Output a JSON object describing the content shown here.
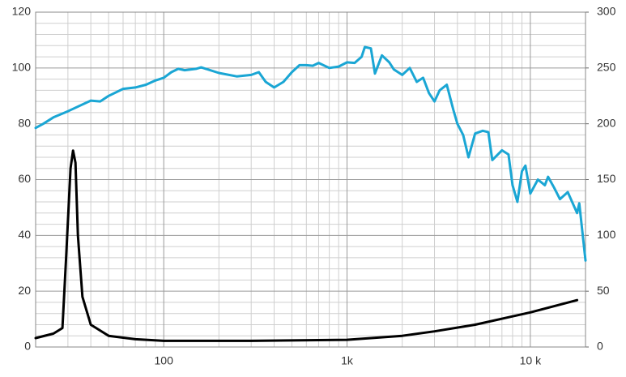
{
  "chart_data": {
    "type": "line",
    "xscale": "log",
    "grid": true,
    "xlim": [
      20,
      20000
    ],
    "xticks": [
      100,
      {
        "value": 1000,
        "label": "1k"
      },
      {
        "value": 10000,
        "label": "10 k"
      }
    ],
    "xminorticks": [
      20,
      30,
      40,
      50,
      60,
      70,
      80,
      90,
      200,
      300,
      400,
      500,
      600,
      700,
      800,
      900,
      2000,
      3000,
      4000,
      5000,
      6000,
      7000,
      8000,
      9000,
      20000
    ],
    "ylim": [
      0,
      120
    ],
    "yticks": [
      0,
      20,
      40,
      60,
      80,
      100,
      120
    ],
    "yminorticks": [
      4,
      8,
      12,
      16,
      24,
      28,
      32,
      36,
      44,
      48,
      52,
      56,
      64,
      68,
      72,
      76,
      84,
      88,
      92,
      96,
      104,
      108,
      112,
      116
    ],
    "y2lim": [
      0,
      300
    ],
    "y2ticks": [
      0,
      50,
      100,
      150,
      200,
      250,
      300
    ],
    "series": [
      {
        "color": "#1aa6d4",
        "axis": "y",
        "x": [
          20,
          22,
          25,
          30,
          40,
          45,
          50,
          60,
          70,
          80,
          90,
          100,
          110,
          120,
          130,
          150,
          160,
          200,
          250,
          300,
          330,
          360,
          400,
          450,
          500,
          550,
          600,
          650,
          700,
          800,
          900,
          1000,
          1100,
          1200,
          1250,
          1350,
          1420,
          1550,
          1700,
          1800,
          2000,
          2200,
          2400,
          2600,
          2800,
          3000,
          3200,
          3500,
          3800,
          4000,
          4300,
          4600,
          5000,
          5500,
          5900,
          6200,
          7000,
          7600,
          8000,
          8500,
          9000,
          9400,
          10000,
          11000,
          12000,
          12500,
          13500,
          14500,
          16000,
          18000,
          18500,
          20000
        ],
        "values": [
          78.5,
          80,
          82.3,
          84.5,
          88.3,
          88,
          90,
          92.5,
          93,
          94,
          95.5,
          96.5,
          98.5,
          99.7,
          99.2,
          99.7,
          100.2,
          98.2,
          97,
          97.5,
          98.5,
          95,
          93,
          95,
          98.5,
          101,
          101,
          100.8,
          101.8,
          100,
          100.5,
          102,
          101.8,
          104,
          107.5,
          107,
          98,
          104.5,
          102,
          99.5,
          97.5,
          100,
          95,
          96.5,
          91,
          88,
          92,
          94,
          85,
          80,
          76,
          68,
          76.5,
          77.5,
          77,
          67,
          70.5,
          69,
          58,
          52,
          63,
          65,
          55,
          60,
          58,
          61,
          57,
          53,
          55.5,
          48,
          51.5,
          31
        ]
      },
      {
        "color": "#000000",
        "axis": "y2",
        "x": [
          20,
          25,
          28,
          29.3,
          30.2,
          31,
          32,
          33,
          34,
          36,
          40,
          50,
          70,
          100,
          300,
          1000,
          2000,
          3000,
          5000,
          10000,
          18000
        ],
        "values": [
          8,
          12,
          17,
          78,
          122,
          160,
          176,
          165,
          100,
          45,
          20,
          10,
          7,
          5.5,
          5.5,
          6.5,
          10,
          14,
          20,
          31,
          42
        ]
      }
    ]
  }
}
